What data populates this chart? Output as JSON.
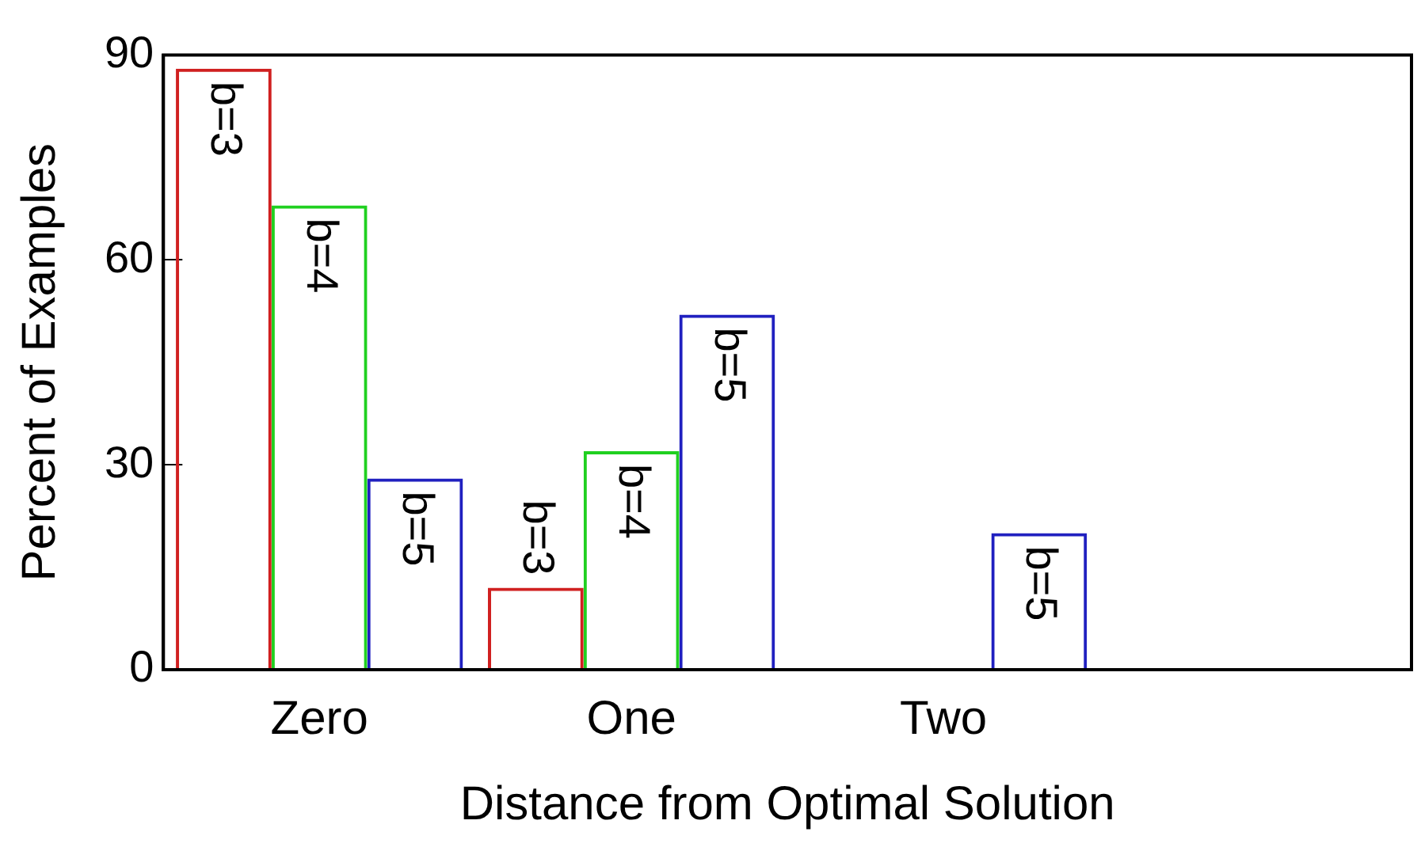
{
  "chart_data": {
    "type": "bar",
    "xlabel": "Distance from Optimal Solution",
    "ylabel": "Percent of Examples",
    "categories": [
      "Zero",
      "One",
      "Two",
      null
    ],
    "series": [
      {
        "name": "b=3",
        "color": "#d02020",
        "values": [
          88,
          12,
          0,
          0
        ]
      },
      {
        "name": "b=4",
        "color": "#20d020",
        "values": [
          68,
          32,
          0,
          0
        ]
      },
      {
        "name": "b=5",
        "color": "#2020c0",
        "values": [
          28,
          52,
          20,
          null
        ]
      }
    ],
    "ylim": [
      0,
      90
    ],
    "yticks": [
      0,
      30,
      60,
      90
    ],
    "grid": false,
    "legend": false
  }
}
